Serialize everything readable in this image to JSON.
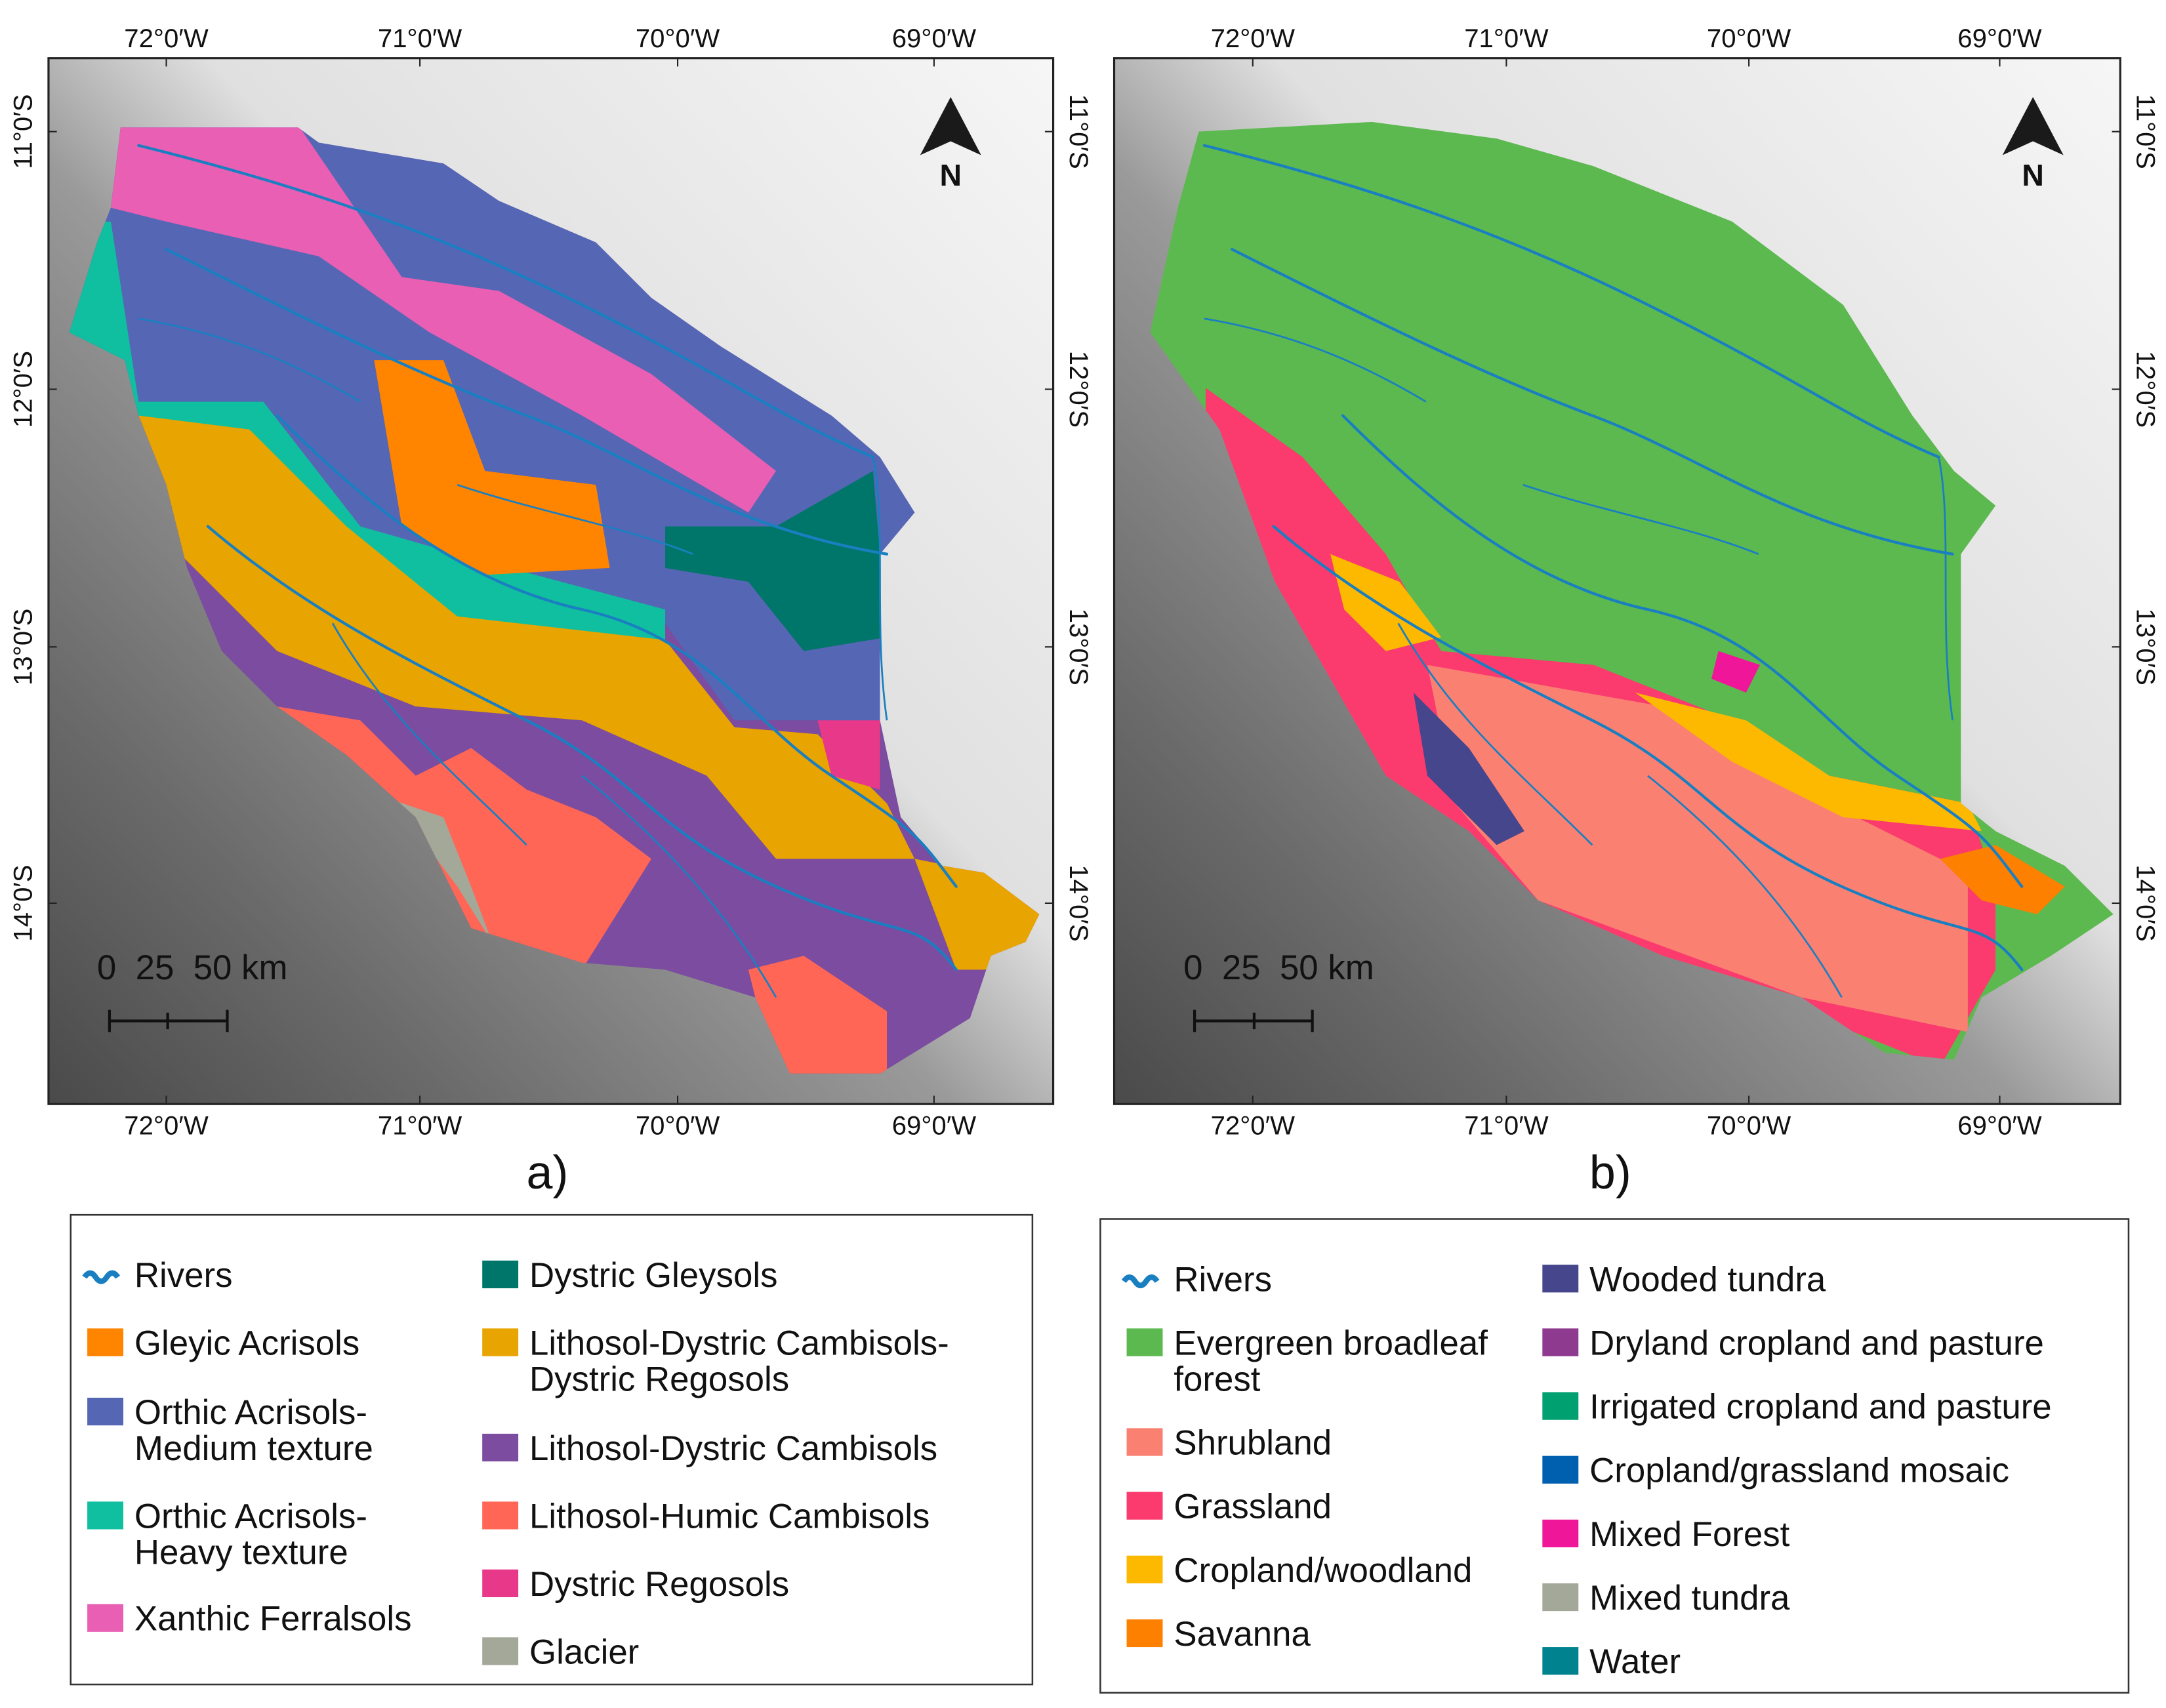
{
  "panels": [
    {
      "label": "a)",
      "top_lon_labels": [
        "72°0′W",
        "71°0′W",
        "70°0′W",
        "69°0′W"
      ],
      "bottom_lon_labels": [
        "72°0′W",
        "71°0′W",
        "70°0′W",
        "69°0′W"
      ],
      "left_lat_labels": [
        "11°0′S",
        "12°0′S",
        "13°0′S",
        "14°0′S"
      ],
      "right_lat_labels": [
        "11°0′S",
        "12°0′S",
        "13°0′S",
        "14°0′S"
      ],
      "north_label": "N",
      "scale_label": "0  25  50 km",
      "legend": [
        {
          "label": [
            "Rivers"
          ],
          "color": "#1a7fc1",
          "icon": "river-wave-icon"
        },
        {
          "label": [
            "Gleyic Acrisols"
          ],
          "color": "#ff8400"
        },
        {
          "label": [
            "Orthic Acrisols-",
            "Medium texture"
          ],
          "color": "#5566b5"
        },
        {
          "label": [
            "Orthic Acrisols-",
            " Heavy texture"
          ],
          "color": "#0fbf9f"
        },
        {
          "label": [
            "Xanthic Ferralsols"
          ],
          "color": "#e85fb3"
        },
        {
          "label": [
            "Dystric Gleysols"
          ],
          "color": "#00766a"
        },
        {
          "label": [
            "Lithosol-Dystric Cambisols-",
            "Dystric Regosols"
          ],
          "color": "#e8a400"
        },
        {
          "label": [
            "Lithosol-Dystric Cambisols"
          ],
          "color": "#7b4c9f"
        },
        {
          "label": [
            "Lithosol-Humic Cambisols"
          ],
          "color": "#ff6655"
        },
        {
          "label": [
            "Dystric Regosols"
          ],
          "color": "#e8388a"
        },
        {
          "label": [
            "Glacier"
          ],
          "color": "#a4a898"
        }
      ]
    },
    {
      "label": "b)",
      "top_lon_labels": [
        "72°0′W",
        "71°0′W",
        "70°0′W",
        "69°0′W"
      ],
      "bottom_lon_labels": [
        "72°0′W",
        "71°0′W",
        "70°0′W",
        "69°0′W"
      ],
      "right_lat_labels": [
        "11°0′S",
        "12°0′S",
        "13°0′S",
        "14°0′S"
      ],
      "north_label": "N",
      "scale_label": "0  25  50 km",
      "legend": [
        {
          "label": [
            "Rivers"
          ],
          "color": "#1a7fc1",
          "icon": "river-wave-icon"
        },
        {
          "label": [
            "Evergreen broadleaf",
            "forest"
          ],
          "color": "#5cb94f"
        },
        {
          "label": [
            "Shrubland"
          ],
          "color": "#fa8072"
        },
        {
          "label": [
            "Grassland"
          ],
          "color": "#fb3a6e"
        },
        {
          "label": [
            "Cropland/woodland"
          ],
          "color": "#fdb800"
        },
        {
          "label": [
            "Savanna"
          ],
          "color": "#fd8000"
        },
        {
          "label": [
            "Wooded tundra"
          ],
          "color": "#46468c"
        },
        {
          "label": [
            "Dryland cropland and pasture"
          ],
          "color": "#8e3a8e"
        },
        {
          "label": [
            "Irrigated cropland and pasture"
          ],
          "color": "#00a070"
        },
        {
          "label": [
            "Cropland/grassland mosaic"
          ],
          "color": "#0060b0"
        },
        {
          "label": [
            "Mixed Forest"
          ],
          "color": "#f0169a"
        },
        {
          "label": [
            "Mixed tundra"
          ],
          "color": "#a4a898"
        },
        {
          "label": [
            "Water"
          ],
          "color": "#00838f"
        }
      ]
    }
  ]
}
